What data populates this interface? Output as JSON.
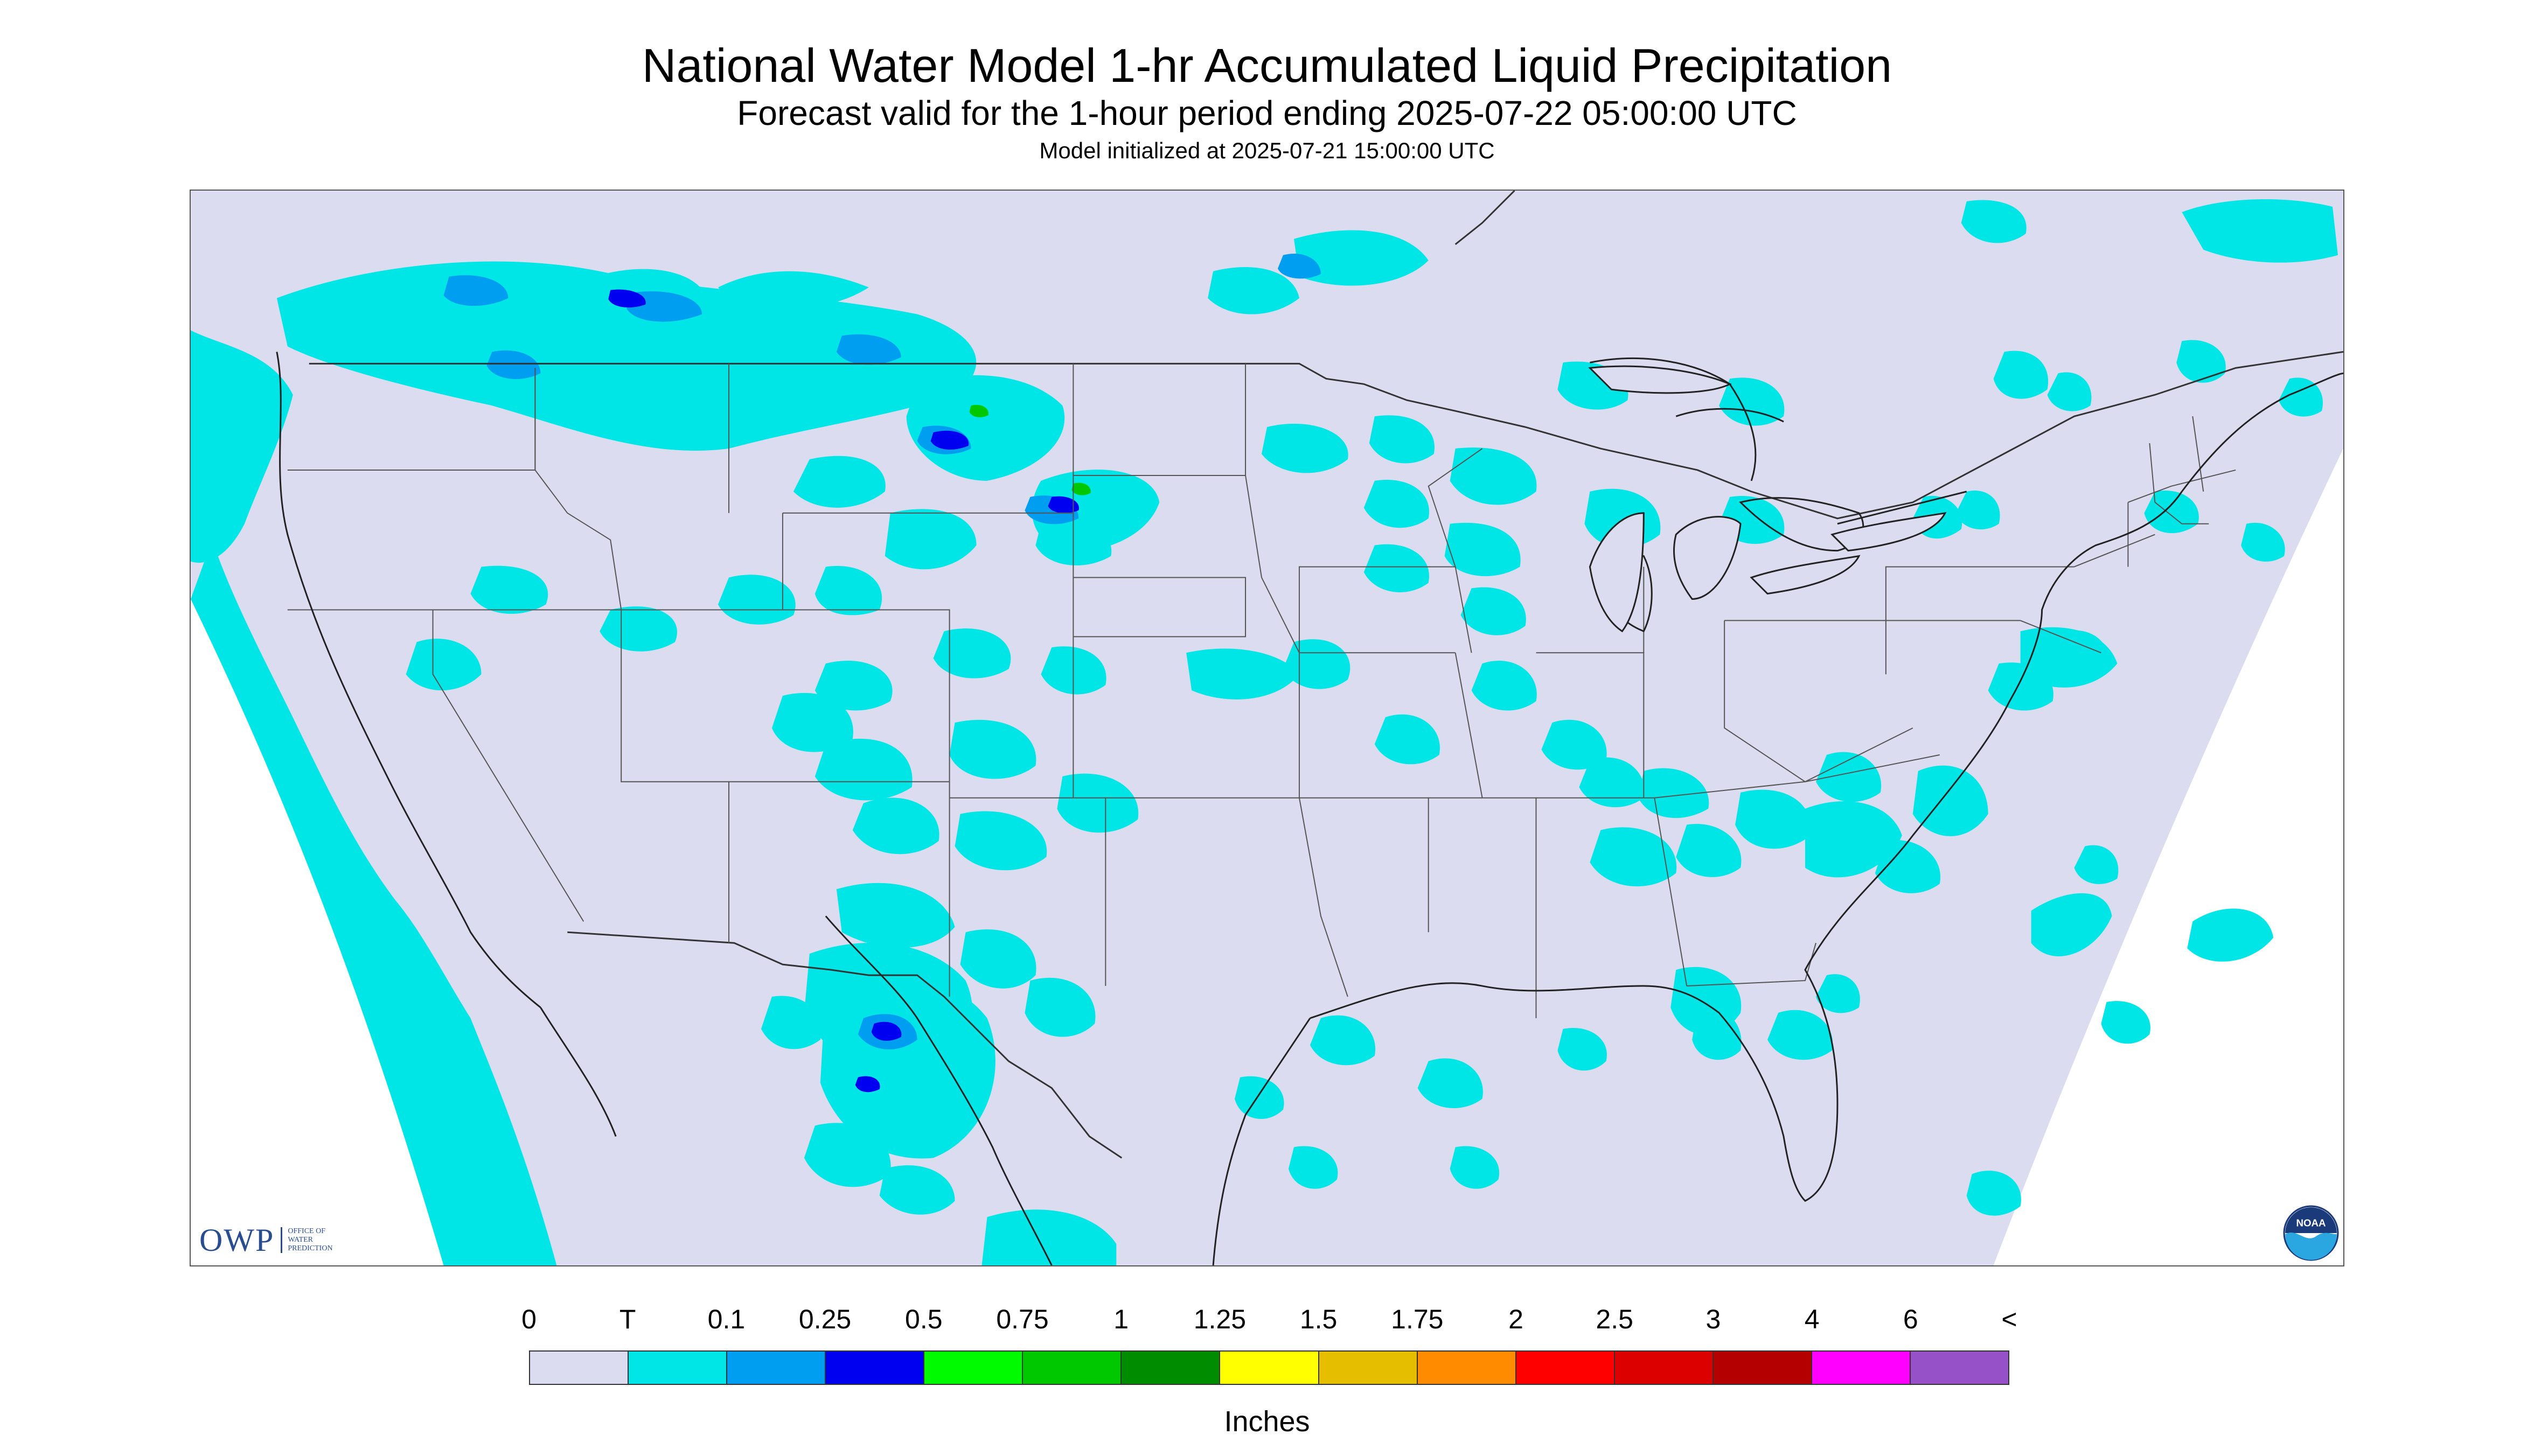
{
  "header": {
    "title": "National Water Model 1-hr Accumulated Liquid Precipitation",
    "subtitle": "Forecast valid for the 1-hour period ending 2025-07-22 05:00:00 UTC",
    "init": "Model initialized at 2025-07-21 15:00:00 UTC"
  },
  "legend": {
    "labels": [
      "0",
      "T",
      "0.1",
      "0.25",
      "0.5",
      "0.75",
      "1",
      "1.25",
      "1.5",
      "1.75",
      "2",
      "2.5",
      "3",
      "4",
      "6",
      "<"
    ],
    "colors": [
      "#dcdcf0",
      "#00e6e6",
      "#009ef0",
      "#0000f0",
      "#00fa00",
      "#00c800",
      "#008c00",
      "#ffff00",
      "#e6be00",
      "#ff8c00",
      "#ff0000",
      "#dc0000",
      "#b40000",
      "#ff00ff",
      "#9650c8"
    ],
    "units": "Inches"
  },
  "logos": {
    "owp": "OWP",
    "owp_sub": "OFFICE OF WATER PREDICTION",
    "noaa": "NOAA"
  },
  "map": {
    "background_color": "#dcdcf0",
    "outside_color": "#ffffff",
    "trace_color": "#00e6e6",
    "light_color": "#009ef0",
    "heavy_color": "#0000f0",
    "green_color": "#00c800"
  }
}
